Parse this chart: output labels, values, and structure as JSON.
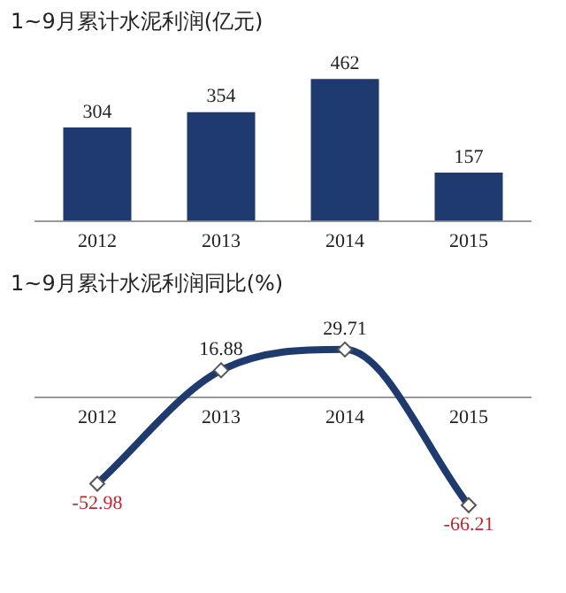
{
  "chart_data": [
    {
      "type": "bar",
      "title": "1~9月累计水泥利润(亿元)",
      "categories": [
        "2012",
        "2013",
        "2014",
        "2015"
      ],
      "values": [
        304,
        354,
        462,
        157
      ],
      "color": "#1f3a6e",
      "data_labels": true,
      "grid": false,
      "legend": false
    },
    {
      "type": "line",
      "title": "1~9月累计水泥利润同比(%)",
      "categories": [
        "2012",
        "2013",
        "2014",
        "2015"
      ],
      "values": [
        -52.98,
        16.88,
        29.71,
        -66.21
      ],
      "color": "#1f3a6e",
      "data_labels": true,
      "marker": "diamond",
      "grid": false,
      "legend": false
    }
  ]
}
